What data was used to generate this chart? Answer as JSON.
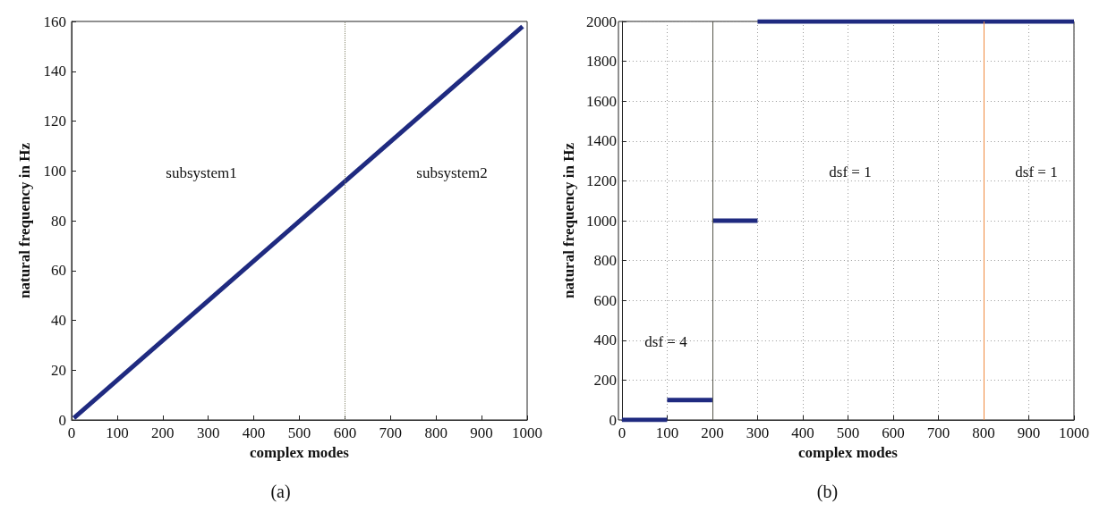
{
  "chart_data": [
    {
      "type": "line",
      "xlabel": "complex modes",
      "ylabel": "natural frequency in Hz",
      "xlim": [
        0,
        1000
      ],
      "xticks": [
        0,
        100,
        200,
        300,
        400,
        500,
        600,
        700,
        800,
        900,
        1000
      ],
      "ylim": [
        0,
        160
      ],
      "yticks": [
        0,
        20,
        40,
        60,
        80,
        100,
        120,
        140,
        160
      ],
      "grid": false,
      "marker": "none",
      "line_style": "solid",
      "series": [
        {
          "color": "#1f2a80",
          "x": [
            5,
            990
          ],
          "values": [
            0.8,
            158
          ]
        }
      ],
      "ref_lines": [
        {
          "axis": "x",
          "value": 600,
          "color": "#8a8a70",
          "line_style": "dotted"
        }
      ],
      "annotations": [
        "subsystem1",
        "subsystem2",
        "(a)"
      ]
    },
    {
      "type": "line",
      "xlabel": "complex modes",
      "ylabel": "natural frequency in Hz",
      "xlim": [
        0,
        1000
      ],
      "xticks": [
        0,
        100,
        200,
        300,
        400,
        500,
        600,
        700,
        800,
        900,
        1000
      ],
      "ylim": [
        0,
        2000
      ],
      "yticks": [
        0,
        200,
        400,
        600,
        800,
        1000,
        1200,
        1400,
        1600,
        1800,
        2000
      ],
      "grid": true,
      "marker": "none",
      "line_style": "solid",
      "series": [
        {
          "color": "#1f2a80",
          "x": [
            0,
            100
          ],
          "values": [
            0,
            0
          ]
        },
        {
          "color": "#1f2a80",
          "x": [
            100,
            200
          ],
          "values": [
            100,
            100
          ]
        },
        {
          "color": "#1f2a80",
          "x": [
            200,
            300
          ],
          "values": [
            1000,
            1000
          ]
        },
        {
          "color": "#1f2a80",
          "x": [
            300,
            1000
          ],
          "values": [
            2000,
            2000
          ]
        }
      ],
      "ref_lines": [
        {
          "axis": "x",
          "value": 200,
          "color": "#55554a",
          "line_style": "solid"
        },
        {
          "axis": "x",
          "value": 800,
          "color": "#f08a40",
          "line_style": "solid"
        }
      ],
      "annotations": [
        "dsf = 4",
        "dsf = 1",
        "dsf = 1",
        "(b)"
      ]
    }
  ]
}
